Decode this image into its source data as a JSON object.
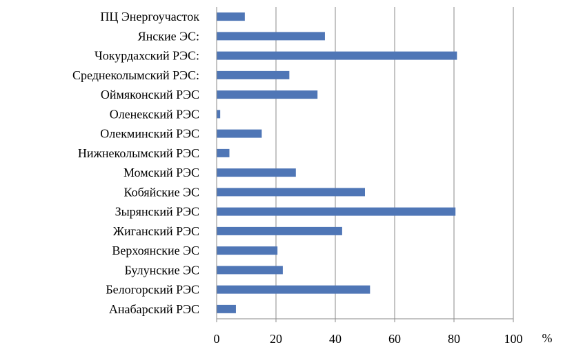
{
  "chart_data": {
    "type": "bar",
    "orientation": "horizontal",
    "categories": [
      "ПЦ Энергоучасток",
      "Янские ЭС:",
      "Чокурдахский РЭС:",
      "Среднеколымский РЭС:",
      "Оймяконский РЭС",
      "Оленекский РЭС",
      "Олекминский РЭС",
      "Нижнеколымский РЭС",
      "Момский РЭС",
      "Кобяйские ЭС",
      "Зырянский РЭС",
      "Жиганский РЭС",
      "Верхоянские ЭС",
      "Булунские ЭС",
      "Белогорский РЭС",
      "Анабарский РЭС"
    ],
    "values": [
      9.5,
      36.5,
      81,
      24.5,
      34,
      1.2,
      15.2,
      4.3,
      26.7,
      50,
      80.5,
      42.3,
      20.5,
      22.3,
      51.7,
      6.5
    ],
    "xlim": [
      0,
      100
    ],
    "xticks": [
      "0",
      "20",
      "40",
      "60",
      "80",
      "100"
    ],
    "xunit": "%",
    "bar_color": "#4f76b6",
    "grid": "vertical"
  }
}
